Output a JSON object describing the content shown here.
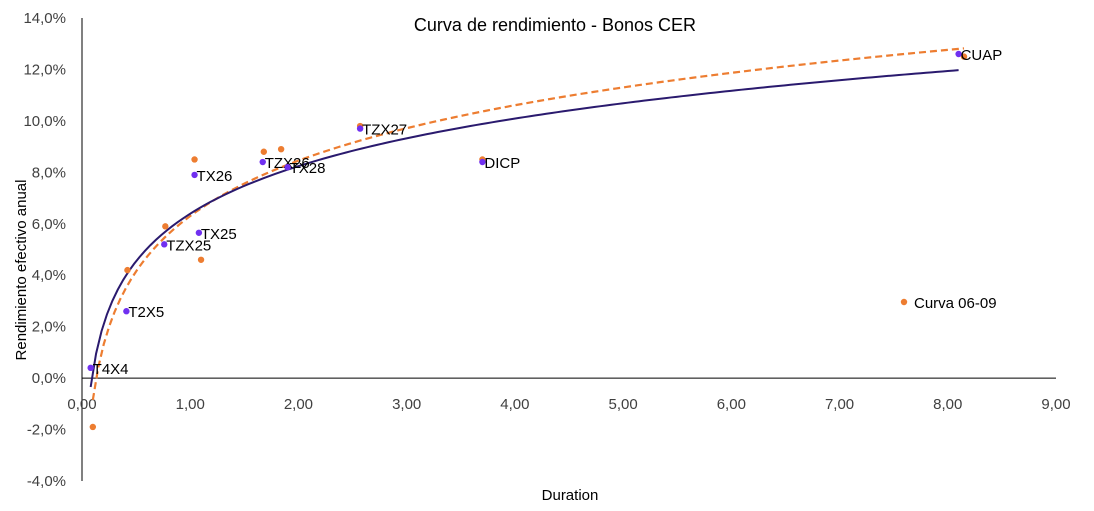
{
  "chart_data": {
    "type": "scatter",
    "title": "Curva de rendimiento - Bonos CER",
    "xlabel": "Duration",
    "ylabel": "Rendimiento efectivo anual",
    "xlim": [
      0,
      9
    ],
    "ylim": [
      -4,
      14
    ],
    "x_ticks": [
      "0,00",
      "1,00",
      "2,00",
      "3,00",
      "4,00",
      "5,00",
      "6,00",
      "7,00",
      "8,00",
      "9,00"
    ],
    "y_ticks": [
      "-4,0%",
      "-2,0%",
      "0,0%",
      "2,0%",
      "4,0%",
      "6,0%",
      "8,0%",
      "10,0%",
      "12,0%",
      "14,0%"
    ],
    "grid": false,
    "legend": {
      "position": "bottom-right",
      "entries": [
        "Curva 06-09"
      ]
    },
    "colors": {
      "current": "#7030f0",
      "previous": "#ed7d31",
      "trend_current": "#2a1a6e",
      "trend_previous": "#ed7d31"
    },
    "series": [
      {
        "points": [
          {
            "label": "T4X4",
            "x": 0.08,
            "y": 0.4
          },
          {
            "label": "T2X5",
            "x": 0.41,
            "y": 2.6
          },
          {
            "label": "TZX25",
            "x": 0.76,
            "y": 5.2
          },
          {
            "label": "TX26",
            "x": 1.04,
            "y": 7.9
          },
          {
            "label": "TX25",
            "x": 1.08,
            "y": 5.65
          },
          {
            "label": "TZX26",
            "x": 1.67,
            "y": 8.4
          },
          {
            "label": "TX28",
            "x": 1.9,
            "y": 8.2
          },
          {
            "label": "TZX27",
            "x": 2.57,
            "y": 9.7
          },
          {
            "label": "DICP",
            "x": 3.7,
            "y": 8.4
          },
          {
            "label": "CUAP",
            "x": 8.1,
            "y": 12.6
          }
        ]
      },
      {
        "name": "Curva 06-09",
        "points": [
          {
            "x": 0.1,
            "y": -1.9
          },
          {
            "x": 0.42,
            "y": 4.2
          },
          {
            "x": 0.77,
            "y": 5.9
          },
          {
            "x": 1.04,
            "y": 8.5
          },
          {
            "x": 1.1,
            "y": 4.6
          },
          {
            "x": 1.68,
            "y": 8.8
          },
          {
            "x": 1.84,
            "y": 8.9
          },
          {
            "x": 2.57,
            "y": 9.8
          },
          {
            "x": 3.7,
            "y": 8.5
          },
          {
            "x": 8.15,
            "y": 12.5
          }
        ]
      }
    ]
  }
}
